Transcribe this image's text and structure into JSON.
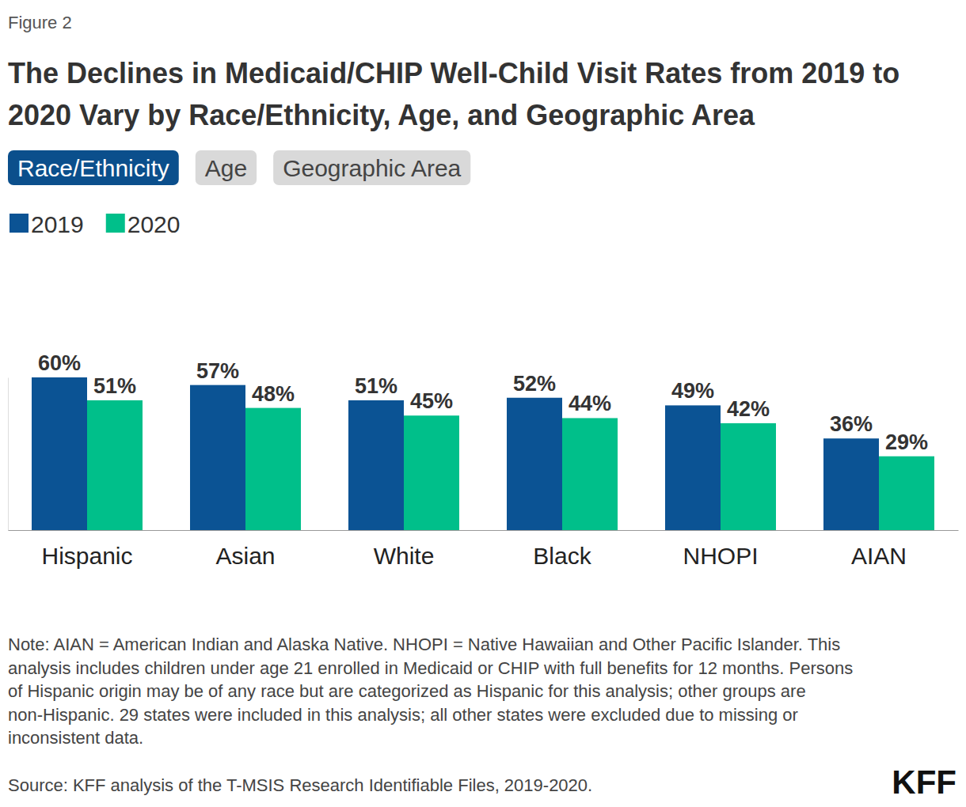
{
  "chart_data": {
    "type": "bar",
    "figure_label": "Figure 2",
    "title": "The Declines in Medicaid/CHIP Well-Child Visit Rates from 2019 to 2020 Vary by Race/Ethnicity, Age, and Geographic Area",
    "tabs": [
      "Race/Ethnicity",
      "Age",
      "Geographic Area"
    ],
    "categories": [
      "Hispanic",
      "Asian",
      "White",
      "Black",
      "NHOPI",
      "AIAN"
    ],
    "series": [
      {
        "name": "2019",
        "color": "#0b5394",
        "values": [
          60,
          57,
          51,
          52,
          49,
          36
        ],
        "value_labels": [
          "60%",
          "57%",
          "51%",
          "52%",
          "49%",
          "36%"
        ]
      },
      {
        "name": "2020",
        "color": "#00bf8a",
        "values": [
          51,
          48,
          45,
          44,
          42,
          29
        ],
        "value_labels": [
          "51%",
          "48%",
          "45%",
          "44%",
          "42%",
          "29%"
        ]
      }
    ],
    "ylim": [
      0,
      60
    ],
    "yticks": [],
    "grid": false,
    "data_labels": true,
    "tick_labels": "x",
    "legend": "top-left",
    "note": "Note: AIAN = American Indian and Alaska Native. NHOPI = Native Hawaiian and Other Pacific Islander. This analysis includes children under age 21 enrolled in Medicaid or CHIP with full benefits for 12 months. Persons of Hispanic origin may be of any race but are categorized as Hispanic for this analysis; other groups are non-Hispanic. 29 states were included in this analysis; all other states were excluded due to missing or inconsistent data.",
    "source": "Source: KFF analysis of the T-MSIS Research Identifiable Files, 2019-2020.",
    "logo": "KFF"
  }
}
